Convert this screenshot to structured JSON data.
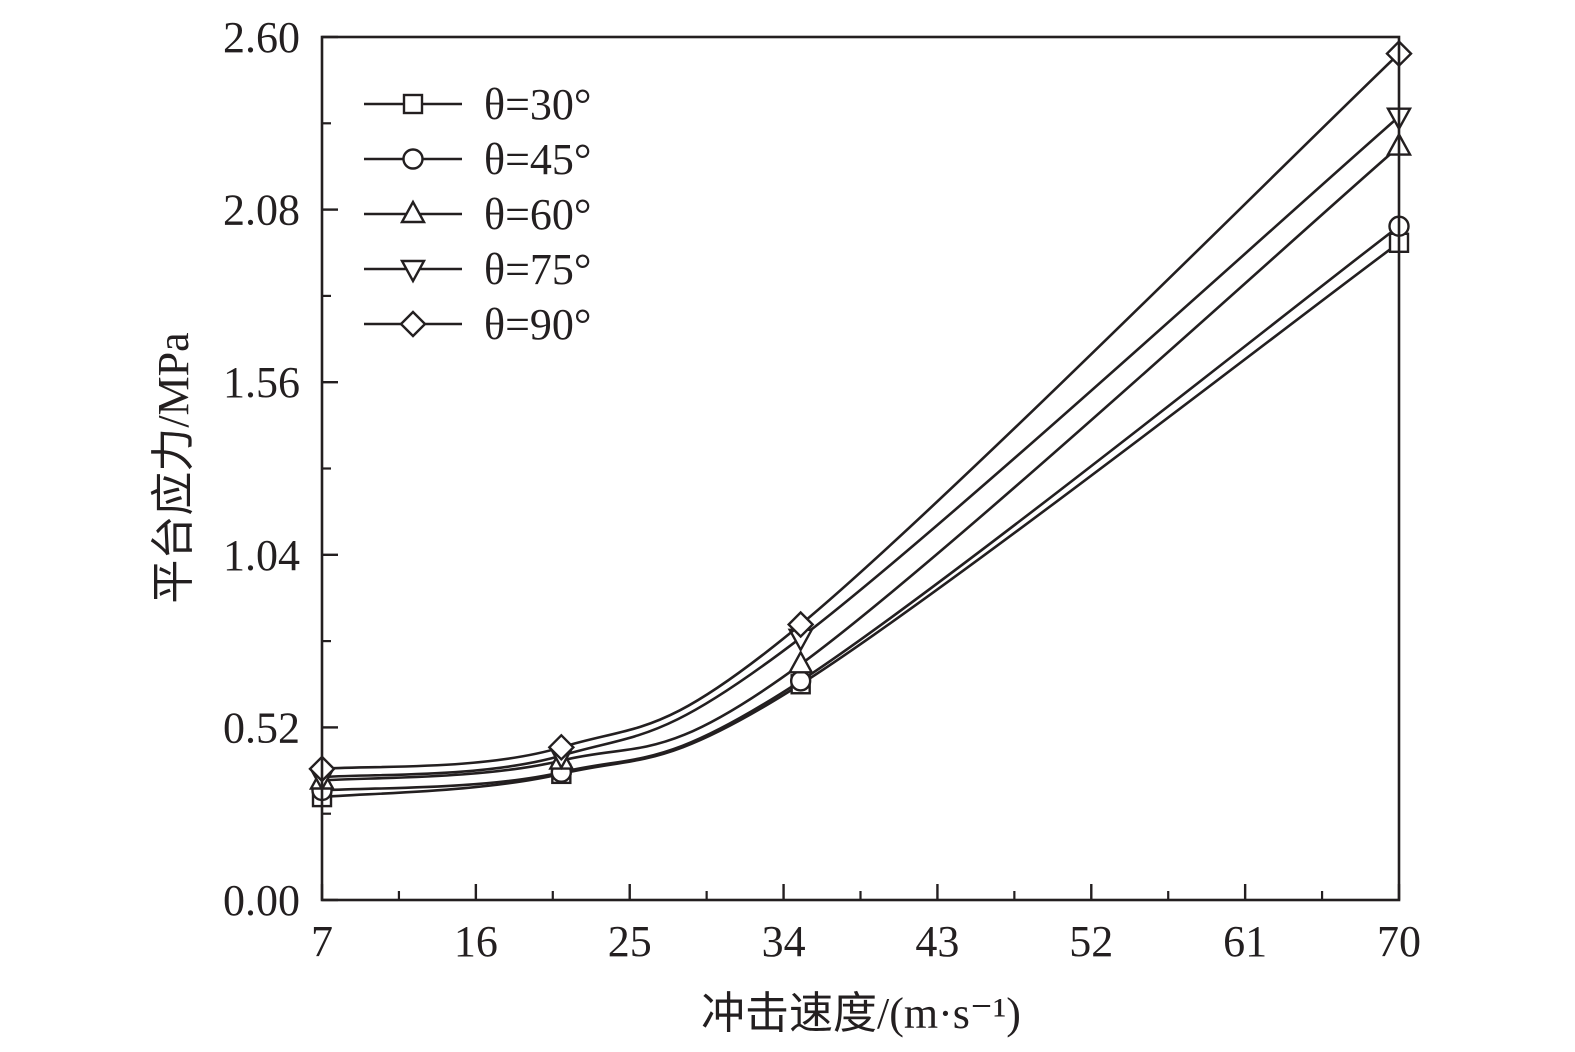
{
  "chart_data": {
    "type": "line",
    "xlabel": "冲击速度/(m·s⁻¹)",
    "ylabel": "平台应力/MPa",
    "xlim": [
      7,
      70
    ],
    "ylim": [
      0,
      2.6
    ],
    "x_ticks": [
      "7",
      "16",
      "25",
      "34",
      "43",
      "52",
      "61",
      "70"
    ],
    "x_tick_values": [
      7,
      16,
      25,
      34,
      43,
      52,
      61,
      70
    ],
    "y_ticks": [
      "0.00",
      "0.52",
      "1.04",
      "1.56",
      "2.08",
      "2.60"
    ],
    "y_tick_values": [
      0,
      0.52,
      1.04,
      1.56,
      2.08,
      2.6
    ],
    "x_minor_step": 4.5,
    "y_minor_step": 0.26,
    "legend_position": "top-left",
    "grid": false,
    "line_color": "#231f20",
    "x": [
      7,
      21,
      35,
      70
    ],
    "series": [
      {
        "name": "θ=30°",
        "marker": "square",
        "values": [
          0.31,
          0.38,
          0.65,
          1.98
        ]
      },
      {
        "name": "θ=45°",
        "marker": "circle",
        "values": [
          0.33,
          0.385,
          0.66,
          2.03
        ]
      },
      {
        "name": "θ=60°",
        "marker": "triangle-up",
        "values": [
          0.36,
          0.42,
          0.71,
          2.27
        ]
      },
      {
        "name": "θ=75°",
        "marker": "triangle-down",
        "values": [
          0.37,
          0.435,
          0.79,
          2.36
        ]
      },
      {
        "name": "θ=90°",
        "marker": "diamond",
        "values": [
          0.395,
          0.46,
          0.83,
          2.55
        ]
      }
    ]
  }
}
